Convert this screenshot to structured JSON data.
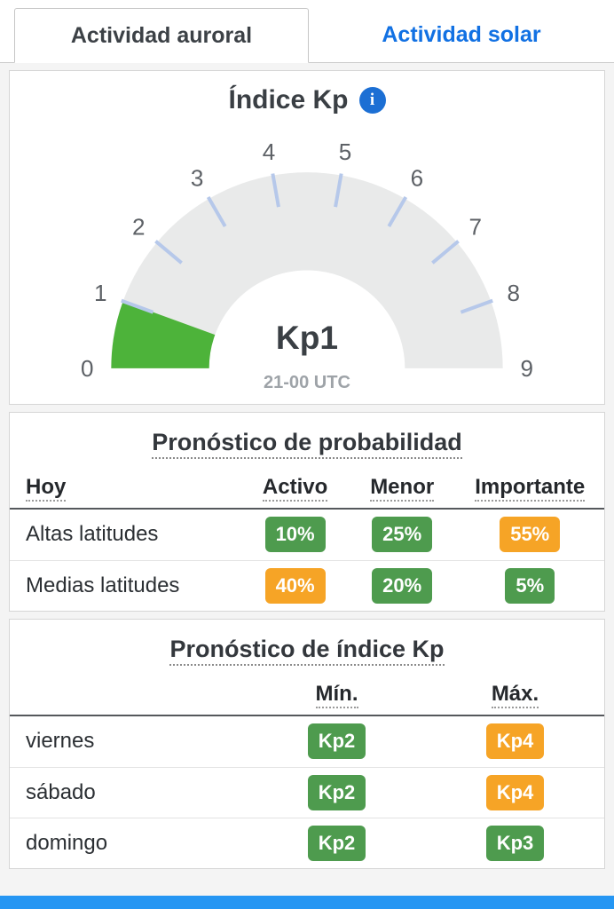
{
  "tabs": {
    "auroral": "Actividad auroral",
    "solar": "Actividad solar"
  },
  "kp_card": {
    "title": "Índice Kp",
    "info_icon": "i",
    "gauge": {
      "type": "gauge",
      "min": 0,
      "max": 9,
      "value": 1,
      "value_label": "Kp1",
      "time_label": "21-00 UTC",
      "ticks": [
        0,
        1,
        2,
        3,
        4,
        5,
        6,
        7,
        8,
        9
      ],
      "track_color": "#e9eaea",
      "fill_color": "#4db33a",
      "tick_color": "#b6c8ea"
    }
  },
  "probability": {
    "title": "Pronóstico de probabilidad",
    "columns": [
      "Hoy",
      "Activo",
      "Menor",
      "Importante"
    ],
    "rows": [
      {
        "label": "Altas latitudes",
        "values": [
          {
            "text": "10%",
            "color": "green"
          },
          {
            "text": "25%",
            "color": "green"
          },
          {
            "text": "55%",
            "color": "orange"
          }
        ]
      },
      {
        "label": "Medias latitudes",
        "values": [
          {
            "text": "40%",
            "color": "orange"
          },
          {
            "text": "20%",
            "color": "green"
          },
          {
            "text": "5%",
            "color": "green"
          }
        ]
      }
    ]
  },
  "forecast": {
    "title": "Pronóstico de índice Kp",
    "columns": [
      "Mín.",
      "Máx."
    ],
    "rows": [
      {
        "label": "viernes",
        "min": {
          "text": "Kp2",
          "color": "green"
        },
        "max": {
          "text": "Kp4",
          "color": "orange"
        }
      },
      {
        "label": "sábado",
        "min": {
          "text": "Kp2",
          "color": "green"
        },
        "max": {
          "text": "Kp4",
          "color": "orange"
        }
      },
      {
        "label": "domingo",
        "min": {
          "text": "Kp2",
          "color": "green"
        },
        "max": {
          "text": "Kp3",
          "color": "green"
        }
      }
    ]
  },
  "colors": {
    "badge_green": "#4e9b4e",
    "badge_orange": "#f6a426",
    "tab_blue": "#1271e3",
    "info_blue": "#1c6fd4",
    "footer_blue": "#2596f3"
  }
}
